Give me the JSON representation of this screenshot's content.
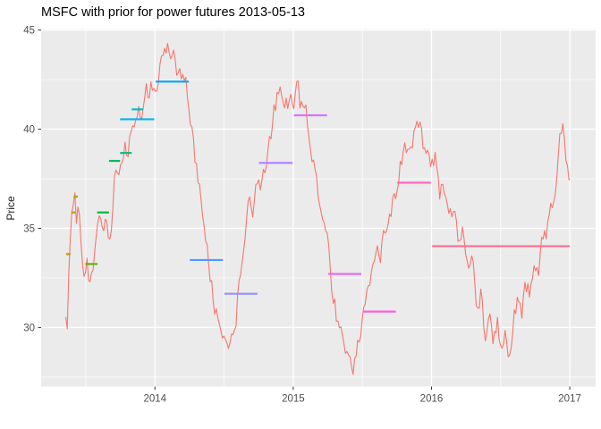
{
  "chart_data": {
    "type": "line",
    "title": "MSFC with prior for power futures 2013-05-13",
    "ylabel": "Price",
    "x_axis": {
      "range": [
        2013.177,
        2017.187
      ],
      "ticks": [
        {
          "value": 2014,
          "label": "2014"
        },
        {
          "value": 2015,
          "label": "2015"
        },
        {
          "value": 2016,
          "label": "2016"
        },
        {
          "value": 2017,
          "label": "2017"
        }
      ],
      "minor": [
        2013.5,
        2014.5,
        2015.5,
        2016.5
      ]
    },
    "y_axis": {
      "range": [
        27.02,
        45.05
      ],
      "ticks": [
        {
          "value": 45,
          "label": "45"
        },
        {
          "value": 40,
          "label": "40"
        },
        {
          "value": 35,
          "label": "35"
        },
        {
          "value": 30,
          "label": "30"
        }
      ],
      "minor": [
        27.5,
        32.5,
        37.5,
        42.5
      ]
    },
    "colors": {
      "line": "#F8766D",
      "panel_bg": "#EBEBEB",
      "grid": "#FFFFFF",
      "tick": "#333333",
      "tick_label": "#4D4D4D"
    },
    "noise": {
      "amplitude_fast": 0.42,
      "amplitude_slow": 0.24
    },
    "series": {
      "name": "MSFC",
      "points": [
        [
          2013.355,
          30.6
        ],
        [
          2013.365,
          29.9
        ],
        [
          2013.38,
          33.4
        ],
        [
          2013.4,
          35.6
        ],
        [
          2013.418,
          36.9
        ],
        [
          2013.432,
          35.1
        ],
        [
          2013.447,
          36.1
        ],
        [
          2013.465,
          34.1
        ],
        [
          2013.487,
          32.4
        ],
        [
          2013.505,
          33.3
        ],
        [
          2013.525,
          31.9
        ],
        [
          2013.55,
          33.1
        ],
        [
          2013.572,
          34.7
        ],
        [
          2013.59,
          35.1
        ],
        [
          2013.61,
          35.8
        ],
        [
          2013.63,
          34.6
        ],
        [
          2013.65,
          35.7
        ],
        [
          2013.668,
          34.0
        ],
        [
          2013.688,
          35.4
        ],
        [
          2013.707,
          37.7
        ],
        [
          2013.727,
          38.4
        ],
        [
          2013.745,
          37.5
        ],
        [
          2013.765,
          38.7
        ],
        [
          2013.785,
          39.3
        ],
        [
          2013.805,
          38.3
        ],
        [
          2013.825,
          39.9
        ],
        [
          2013.845,
          40.7
        ],
        [
          2013.865,
          39.9
        ],
        [
          2013.885,
          41.1
        ],
        [
          2013.905,
          40.4
        ],
        [
          2013.925,
          42.0
        ],
        [
          2013.94,
          42.7
        ],
        [
          2013.958,
          41.5
        ],
        [
          2013.976,
          42.3
        ],
        [
          2013.995,
          41.7
        ],
        [
          2014.015,
          42.5
        ],
        [
          2014.045,
          43.6
        ],
        [
          2014.075,
          44.1
        ],
        [
          2014.098,
          44.3
        ],
        [
          2014.118,
          43.3
        ],
        [
          2014.138,
          43.9
        ],
        [
          2014.158,
          42.9
        ],
        [
          2014.178,
          43.4
        ],
        [
          2014.198,
          42.2
        ],
        [
          2014.218,
          42.7
        ],
        [
          2014.24,
          41.5
        ],
        [
          2014.268,
          40.0
        ],
        [
          2014.298,
          38.4
        ],
        [
          2014.328,
          36.7
        ],
        [
          2014.358,
          35.1
        ],
        [
          2014.388,
          33.3
        ],
        [
          2014.418,
          31.6
        ],
        [
          2014.448,
          30.3
        ],
        [
          2014.478,
          29.6
        ],
        [
          2014.503,
          29.9
        ],
        [
          2014.528,
          29.2
        ],
        [
          2014.553,
          30.0
        ],
        [
          2014.578,
          29.5
        ],
        [
          2014.608,
          31.8
        ],
        [
          2014.638,
          34.0
        ],
        [
          2014.668,
          36.2
        ],
        [
          2014.688,
          36.6
        ],
        [
          2014.708,
          35.9
        ],
        [
          2014.738,
          37.4
        ],
        [
          2014.768,
          37.0
        ],
        [
          2014.798,
          38.2
        ],
        [
          2014.828,
          39.3
        ],
        [
          2014.858,
          40.9
        ],
        [
          2014.888,
          41.9
        ],
        [
          2014.908,
          42.2
        ],
        [
          2014.928,
          40.9
        ],
        [
          2014.948,
          41.5
        ],
        [
          2014.968,
          41.1
        ],
        [
          2014.988,
          41.7
        ],
        [
          2015.008,
          41.2
        ],
        [
          2015.028,
          42.5
        ],
        [
          2015.052,
          41.1
        ],
        [
          2015.078,
          41.4
        ],
        [
          2015.108,
          40.0
        ],
        [
          2015.138,
          38.4
        ],
        [
          2015.168,
          37.7
        ],
        [
          2015.198,
          36.3
        ],
        [
          2015.228,
          35.2
        ],
        [
          2015.258,
          33.6
        ],
        [
          2015.288,
          31.8
        ],
        [
          2015.318,
          30.5
        ],
        [
          2015.348,
          29.6
        ],
        [
          2015.378,
          28.9
        ],
        [
          2015.408,
          28.4
        ],
        [
          2015.438,
          27.8
        ],
        [
          2015.462,
          28.9
        ],
        [
          2015.49,
          29.9
        ],
        [
          2015.518,
          31.1
        ],
        [
          2015.548,
          32.2
        ],
        [
          2015.578,
          33.4
        ],
        [
          2015.608,
          34.4
        ],
        [
          2015.628,
          33.6
        ],
        [
          2015.658,
          34.9
        ],
        [
          2015.688,
          35.8
        ],
        [
          2015.718,
          36.4
        ],
        [
          2015.748,
          37.1
        ],
        [
          2015.788,
          38.4
        ],
        [
          2015.828,
          39.1
        ],
        [
          2015.878,
          39.7
        ],
        [
          2015.918,
          40.4
        ],
        [
          2015.938,
          38.9
        ],
        [
          2015.968,
          39.4
        ],
        [
          2015.998,
          37.9
        ],
        [
          2016.028,
          38.5
        ],
        [
          2016.058,
          36.9
        ],
        [
          2016.088,
          37.5
        ],
        [
          2016.128,
          35.4
        ],
        [
          2016.158,
          36.1
        ],
        [
          2016.198,
          34.3
        ],
        [
          2016.228,
          34.9
        ],
        [
          2016.268,
          32.6
        ],
        [
          2016.298,
          33.3
        ],
        [
          2016.328,
          30.9
        ],
        [
          2016.358,
          31.7
        ],
        [
          2016.388,
          29.7
        ],
        [
          2016.418,
          30.6
        ],
        [
          2016.448,
          29.1
        ],
        [
          2016.478,
          30.1
        ],
        [
          2016.508,
          28.7
        ],
        [
          2016.538,
          29.8
        ],
        [
          2016.568,
          28.6
        ],
        [
          2016.598,
          30.4
        ],
        [
          2016.628,
          31.2
        ],
        [
          2016.648,
          30.5
        ],
        [
          2016.678,
          32.3
        ],
        [
          2016.708,
          31.6
        ],
        [
          2016.738,
          33.5
        ],
        [
          2016.768,
          32.8
        ],
        [
          2016.798,
          34.9
        ],
        [
          2016.828,
          34.3
        ],
        [
          2016.858,
          36.4
        ],
        [
          2016.878,
          35.8
        ],
        [
          2016.908,
          38.0
        ],
        [
          2016.928,
          39.8
        ],
        [
          2016.948,
          40.5
        ],
        [
          2016.968,
          39.2
        ],
        [
          2016.98,
          38.3
        ],
        [
          2017.0,
          37.5
        ]
      ]
    },
    "prior_segments": [
      {
        "start": 2013.358,
        "end": 2013.39,
        "price": 33.7,
        "color": "#C49A00"
      },
      {
        "start": 2013.395,
        "end": 2013.425,
        "price": 35.8,
        "color": "#B8A100"
      },
      {
        "start": 2013.412,
        "end": 2013.442,
        "price": 36.6,
        "color": "#A3A500"
      },
      {
        "start": 2013.497,
        "end": 2013.585,
        "price": 33.2,
        "color": "#64B200"
      },
      {
        "start": 2013.582,
        "end": 2013.668,
        "price": 35.8,
        "color": "#00BA38"
      },
      {
        "start": 2013.668,
        "end": 2013.748,
        "price": 38.4,
        "color": "#00BD5F"
      },
      {
        "start": 2013.748,
        "end": 2013.832,
        "price": 38.8,
        "color": "#00C08B"
      },
      {
        "start": 2013.832,
        "end": 2013.915,
        "price": 41.0,
        "color": "#00BFC4"
      },
      {
        "start": 2013.748,
        "end": 2013.995,
        "price": 40.5,
        "color": "#00B4EF"
      },
      {
        "start": 2014.005,
        "end": 2014.245,
        "price": 42.4,
        "color": "#00A6FF"
      },
      {
        "start": 2014.252,
        "end": 2014.492,
        "price": 33.4,
        "color": "#4C9AFF"
      },
      {
        "start": 2014.502,
        "end": 2014.742,
        "price": 31.7,
        "color": "#9590FF"
      },
      {
        "start": 2014.752,
        "end": 2014.995,
        "price": 38.3,
        "color": "#B284FF"
      },
      {
        "start": 2015.005,
        "end": 2015.245,
        "price": 40.7,
        "color": "#D873FB"
      },
      {
        "start": 2015.252,
        "end": 2015.492,
        "price": 32.7,
        "color": "#E96BF0"
      },
      {
        "start": 2015.502,
        "end": 2015.742,
        "price": 30.8,
        "color": "#FB61D7"
      },
      {
        "start": 2015.752,
        "end": 2015.995,
        "price": 37.3,
        "color": "#FF62BC"
      },
      {
        "start": 2016.005,
        "end": 2017.0,
        "price": 34.1,
        "color": "#FF6C91"
      }
    ]
  }
}
